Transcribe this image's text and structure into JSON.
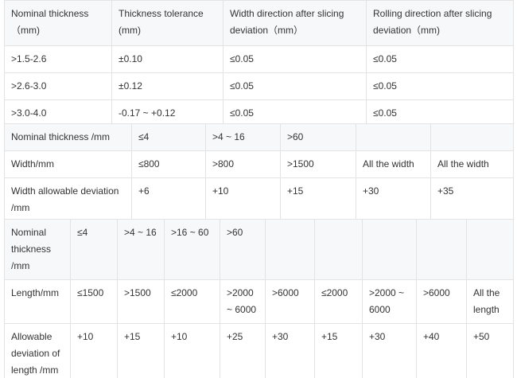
{
  "tables": [
    {
      "rows": [
        [
          "Nominal thickness （mm)",
          "Thickness tolerance (mm)",
          "Width direction after slicing deviation（mm）",
          "Rolling direction after slicing deviation（mm)"
        ],
        [
          ">1.5-2.6",
          "±0.10",
          "≤0.05",
          "≤0.05"
        ],
        [
          ">2.6-3.0",
          "±0.12",
          "≤0.05",
          "≤0.05"
        ],
        [
          ">3.0-4.0",
          "-0.17 ~ +0.12",
          "≤0.05",
          "≤0.05"
        ]
      ]
    },
    {
      "rows": [
        [
          "Nominal thickness /mm",
          "≤4",
          ">4 ~ 16",
          ">60"
        ],
        [
          "Width/mm",
          "≤800",
          ">800",
          ">1500",
          "All the width",
          "All the width"
        ],
        [
          "Width allowable deviation /mm",
          "+6",
          "+10",
          "+15",
          "+30",
          "+35"
        ]
      ]
    },
    {
      "rows": [
        [
          "Nominal thickness /mm",
          "≤4",
          ">4 ~ 16",
          ">16 ~ 60",
          ">60"
        ],
        [
          "Length/mm",
          "≤1500",
          ">1500",
          "≤2000",
          ">2000 ~ 6000",
          ">6000",
          "≤2000",
          ">2000 ~ 6000",
          ">6000",
          "All the length"
        ],
        [
          "Allowable deviation of length /mm",
          "+10",
          "+15",
          "+10",
          "+25",
          "+30",
          "+15",
          "+30",
          "+40",
          "+50"
        ]
      ]
    }
  ]
}
